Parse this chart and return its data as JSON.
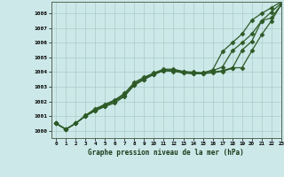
{
  "title": "Graphe pression niveau de la mer (hPa)",
  "background_color": "#cde8e8",
  "grid_color": "#aacccc",
  "line_color": "#2d5a27",
  "xlim": [
    -0.5,
    23
  ],
  "ylim": [
    999.5,
    1008.8
  ],
  "yticks": [
    1000,
    1001,
    1002,
    1003,
    1004,
    1005,
    1006,
    1007,
    1008
  ],
  "xticks": [
    0,
    1,
    2,
    3,
    4,
    5,
    6,
    7,
    8,
    9,
    10,
    11,
    12,
    13,
    14,
    15,
    16,
    17,
    18,
    19,
    20,
    21,
    22,
    23
  ],
  "series": [
    {
      "x": [
        0,
        1,
        2,
        3,
        4,
        5,
        6,
        7,
        8,
        9,
        10,
        11,
        12,
        13,
        14,
        15,
        16,
        17,
        18,
        19,
        20,
        21,
        22,
        23
      ],
      "y": [
        1000.5,
        1000.1,
        1000.5,
        1001.0,
        1001.35,
        1001.65,
        1001.9,
        1002.35,
        1003.15,
        1003.5,
        1003.85,
        1004.1,
        1004.05,
        1003.95,
        1003.9,
        1003.9,
        1003.95,
        1004.05,
        1004.25,
        1005.5,
        1006.1,
        1007.5,
        1007.7,
        1008.6
      ],
      "marker": "D",
      "markersize": 2.5,
      "linewidth": 0.9
    },
    {
      "x": [
        0,
        1,
        2,
        3,
        4,
        5,
        6,
        7,
        8,
        9,
        10,
        11,
        12,
        13,
        14,
        15,
        16,
        17,
        18,
        19,
        20,
        21,
        22,
        23
      ],
      "y": [
        1000.5,
        1000.1,
        1000.5,
        1001.0,
        1001.4,
        1001.7,
        1002.0,
        1002.4,
        1003.1,
        1003.5,
        1003.85,
        1004.1,
        1004.1,
        1003.95,
        1003.9,
        1003.9,
        1004.0,
        1004.1,
        1004.3,
        1004.3,
        1005.45,
        1006.55,
        1007.5,
        1008.6
      ],
      "marker": "D",
      "markersize": 2.5,
      "linewidth": 0.9
    },
    {
      "x": [
        0,
        1,
        2,
        3,
        4,
        5,
        6,
        7,
        8,
        9,
        10,
        11,
        12,
        13,
        14,
        15,
        16,
        17,
        18,
        19,
        20,
        21,
        22,
        23
      ],
      "y": [
        1000.5,
        1000.1,
        1000.5,
        1001.0,
        1001.45,
        1001.75,
        1002.05,
        1002.5,
        1003.2,
        1003.6,
        1003.9,
        1004.15,
        1004.15,
        1004.0,
        1003.95,
        1003.95,
        1004.1,
        1004.35,
        1005.45,
        1006.0,
        1006.6,
        1007.5,
        1008.1,
        1008.7
      ],
      "marker": "D",
      "markersize": 2.5,
      "linewidth": 0.9
    },
    {
      "x": [
        0,
        1,
        2,
        3,
        4,
        5,
        6,
        7,
        8,
        9,
        10,
        11,
        12,
        13,
        14,
        15,
        16,
        17,
        18,
        19,
        20,
        21,
        22,
        23
      ],
      "y": [
        1000.5,
        1000.1,
        1000.5,
        1001.05,
        1001.5,
        1001.8,
        1002.1,
        1002.55,
        1003.3,
        1003.65,
        1003.95,
        1004.2,
        1004.2,
        1004.05,
        1004.0,
        1003.95,
        1004.15,
        1005.4,
        1006.0,
        1006.6,
        1007.55,
        1008.0,
        1008.4,
        1008.8
      ],
      "marker": "D",
      "markersize": 2.5,
      "linewidth": 0.9
    }
  ]
}
